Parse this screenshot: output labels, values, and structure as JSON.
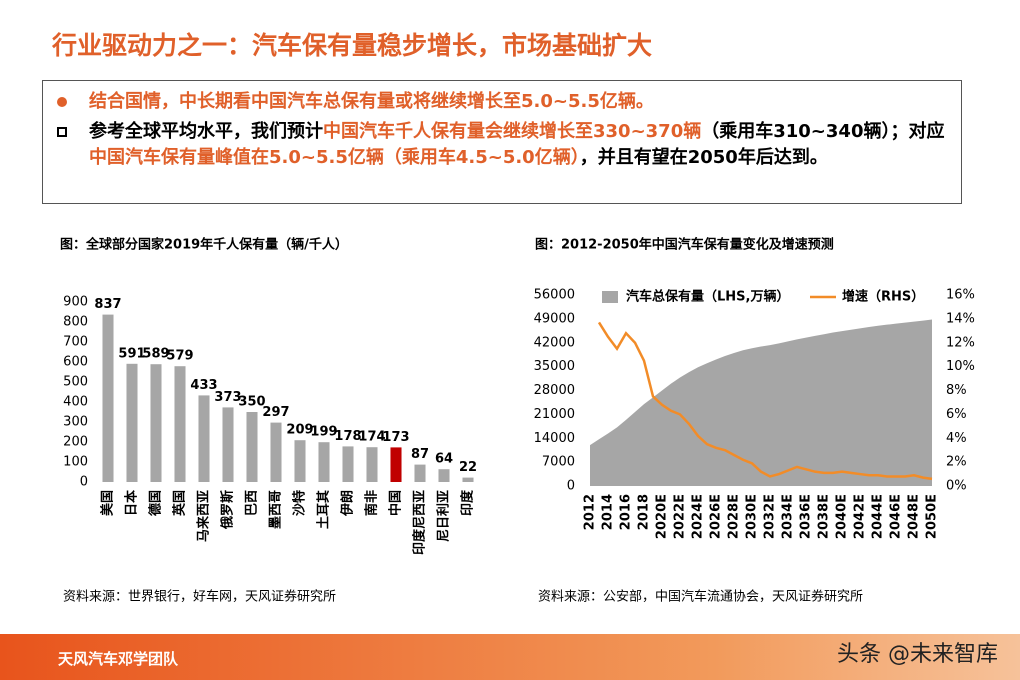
{
  "header": {
    "title": "行业驱动力之一：汽车保有量稳步增长，市场基础扩大"
  },
  "bullets": [
    {
      "segments": [
        {
          "text": "结合国情，中长期看中国汽车总保有量或将继续增长至5.0~5.5亿辆。",
          "color": "#e0602a"
        }
      ]
    },
    {
      "segments": [
        {
          "text": "参考全球平均水平，我们预计",
          "color": "#000000"
        },
        {
          "text": "中国汽车千人保有量会继续增长至330~370辆",
          "color": "#e0602a"
        },
        {
          "text": "（乘用车310~340辆）；对应",
          "color": "#000000"
        },
        {
          "text": "中国汽车保有量峰值在5.0~5.5亿辆（乘用车4.5~5.0亿辆）",
          "color": "#e0602a"
        },
        {
          "text": "，并且有望在2050年后达到。",
          "color": "#000000"
        }
      ]
    }
  ],
  "chart_data": [
    {
      "type": "bar",
      "title": "图：全球部分国家2019年千人保有量（辆/千人）",
      "categories": [
        "美国",
        "日本",
        "德国",
        "英国",
        "马来西亚",
        "俄罗斯",
        "巴西",
        "墨西哥",
        "沙特",
        "土耳其",
        "伊朗",
        "南非",
        "中国",
        "印度尼西亚",
        "尼日利亚",
        "印度"
      ],
      "values": [
        837,
        591,
        589,
        579,
        433,
        373,
        350,
        297,
        209,
        199,
        178,
        174,
        173,
        87,
        64,
        22
      ],
      "colors": [
        "#a6a6a6",
        "#a6a6a6",
        "#a6a6a6",
        "#a6a6a6",
        "#a6a6a6",
        "#a6a6a6",
        "#a6a6a6",
        "#a6a6a6",
        "#a6a6a6",
        "#a6a6a6",
        "#a6a6a6",
        "#a6a6a6",
        "#c00000",
        "#a6a6a6",
        "#a6a6a6",
        "#a6a6a6"
      ],
      "show_values": true,
      "ylim": [
        0,
        900
      ],
      "yticks": [
        0,
        100,
        200,
        300,
        400,
        500,
        600,
        700,
        800,
        900
      ],
      "source": "资料来源：世界银行，好车网，天风证券研究所"
    },
    {
      "type": "combo",
      "title": "图：2012-2050年中国汽车保有量变化及增速预测",
      "categories": [
        "2012",
        null,
        "2014",
        null,
        "2016",
        null,
        "2018",
        null,
        "2020E",
        null,
        "2022E",
        null,
        "2024E",
        null,
        "2026E",
        null,
        "2028E",
        null,
        "2030E",
        null,
        "2032E",
        null,
        "2034E",
        null,
        "2036E",
        null,
        "2038E",
        null,
        "2040E",
        null,
        "2042E",
        null,
        "2044E",
        null,
        "2046E",
        null,
        "2048E",
        null,
        "2050E"
      ],
      "series": [
        {
          "name": "汽车总保有量（LHS,万辆）",
          "type": "area",
          "color": "#a6a6a6",
          "values": [
            12000,
            13700,
            15400,
            17200,
            19400,
            21700,
            24000,
            26000,
            28000,
            30000,
            31800,
            33400,
            34800,
            36000,
            37100,
            38100,
            39000,
            39800,
            40400,
            40900,
            41300,
            41800,
            42400,
            43000,
            43500,
            44000,
            44500,
            45000,
            45400,
            45800,
            46200,
            46600,
            47000,
            47300,
            47600,
            47900,
            48200,
            48500,
            48800
          ]
        },
        {
          "name": "增速（RHS）",
          "type": "line",
          "color": "#f28c28",
          "axis": "y2",
          "values": [
            null,
            13.7,
            12.5,
            11.5,
            12.8,
            12.0,
            10.5,
            7.5,
            6.8,
            6.3,
            6.0,
            5.2,
            4.2,
            3.5,
            3.2,
            3.0,
            2.6,
            2.2,
            1.9,
            1.2,
            0.8,
            1.0,
            1.3,
            1.6,
            1.4,
            1.2,
            1.1,
            1.1,
            1.2,
            1.1,
            1.0,
            0.9,
            0.9,
            0.8,
            0.8,
            0.8,
            0.9,
            0.7,
            0.6
          ]
        }
      ],
      "legend": "top",
      "ylim": [
        0,
        56000
      ],
      "yticks": [
        0,
        7000,
        14000,
        21000,
        28000,
        35000,
        42000,
        49000,
        56000
      ],
      "y2lim": [
        0,
        16
      ],
      "y2ticks": [
        {
          "value": 0,
          "label": "0%"
        },
        {
          "value": 2,
          "label": "2%"
        },
        {
          "value": 4,
          "label": "4%"
        },
        {
          "value": 6,
          "label": "6%"
        },
        {
          "value": 8,
          "label": "8%"
        },
        {
          "value": 10,
          "label": "10%"
        },
        {
          "value": 12,
          "label": "12%"
        },
        {
          "value": 14,
          "label": "14%"
        },
        {
          "value": 16,
          "label": "16%"
        }
      ],
      "source": "资料来源：公安部，中国汽车流通协会，天风证券研究所"
    }
  ],
  "footer": {
    "team": "天风汽车邓学团队",
    "watermark": "头条 @未来智库"
  }
}
